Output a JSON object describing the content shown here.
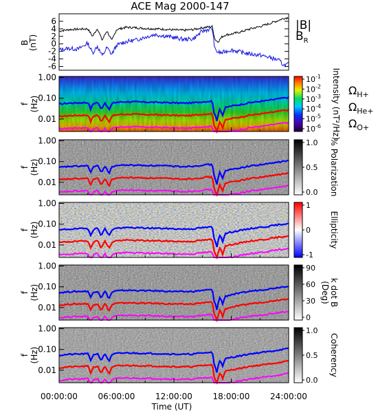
{
  "title": "ACE Mag 2000-147",
  "colors": {
    "bmag": "#000000",
    "br": "#1010e0",
    "h": "#0000ff",
    "he": "#ff0000",
    "o": "#ff00ff"
  },
  "chart_data": [
    {
      "type": "line",
      "panel": "B",
      "ylabel_top": "B",
      "ylabel_bottom": "(nT)",
      "ylim": [
        -7,
        8
      ],
      "ytick_labels": [
        "6",
        "4",
        "2",
        "0",
        "-2",
        "-4",
        "-6"
      ],
      "legend": [
        {
          "label": "|B|"
        },
        {
          "label": "B",
          "sub": "R"
        }
      ],
      "x": [
        0,
        1,
        2,
        3,
        3.5,
        4,
        4.5,
        5,
        5.5,
        6,
        7,
        8,
        9,
        10,
        11,
        12,
        13,
        14,
        15,
        16,
        16.3,
        16.6,
        17,
        17.4,
        18,
        19,
        20,
        21,
        22,
        23,
        23.5,
        24
      ],
      "series": [
        {
          "name": "|B|",
          "values": [
            3.4,
            3.8,
            3.9,
            4.0,
            2.0,
            4.1,
            1.0,
            3.5,
            0.8,
            3.8,
            4.4,
            4.3,
            4.1,
            4.0,
            3.9,
            3.7,
            3.6,
            3.8,
            4.3,
            4.6,
            1.2,
            0.5,
            1.8,
            2.4,
            2.6,
            3.2,
            4.0,
            4.6,
            5.4,
            6.3,
            6.8,
            7.0
          ]
        },
        {
          "name": "B_R",
          "values": [
            -1.6,
            -1.2,
            -1.4,
            0.2,
            -2.4,
            -0.6,
            -3.2,
            -1.0,
            -2.8,
            -0.4,
            0.6,
            1.0,
            1.8,
            2.5,
            2.1,
            1.7,
            1.2,
            1.3,
            3.4,
            4.1,
            -1.6,
            -2.2,
            -2.4,
            -2.0,
            -1.6,
            -2.2,
            -2.7,
            -3.0,
            -3.6,
            -4.4,
            -5.7,
            -5.4
          ]
        }
      ]
    },
    {
      "type": "heatmap",
      "panel": "intensity",
      "ylabel_top": "f",
      "ylabel_bottom": "(Hz)",
      "ytick_labels": [
        "1.00",
        "0.10",
        "0.01"
      ],
      "colorbar_label": "Intensity (nT²/Hz)",
      "colorbar_ticks": [
        {
          "base": "10",
          "exp": "-1"
        },
        {
          "base": "10",
          "exp": "-2"
        },
        {
          "base": "10",
          "exp": "-3"
        },
        {
          "base": "10",
          "exp": "-4"
        },
        {
          "base": "10",
          "exp": "-5"
        },
        {
          "base": "10",
          "exp": "-6"
        }
      ],
      "gyro_labels": [
        {
          "sym": "Ω",
          "sub": "H+"
        },
        {
          "sym": "Ω",
          "sub": "He+"
        },
        {
          "sym": "Ω",
          "sub": "O+"
        }
      ]
    },
    {
      "type": "heatmap",
      "panel": "polarization",
      "ylabel_top": "f",
      "ylabel_bottom": "(Hz)",
      "ytick_labels": [
        "1.00",
        "0.10",
        "0.01"
      ],
      "colorbar_label": "% Polarization",
      "colorbar_ticks": [
        "1.0",
        "0.5",
        "0.0"
      ]
    },
    {
      "type": "heatmap",
      "panel": "ellipticity",
      "ylabel_top": "f",
      "ylabel_bottom": "(Hz)",
      "ytick_labels": [
        "1.00",
        "0.10",
        "0.01"
      ],
      "colorbar_label": "Ellipticity",
      "colorbar_ticks": [
        "1",
        "0",
        "-1"
      ]
    },
    {
      "type": "heatmap",
      "panel": "kdotb",
      "ylabel_top": "f",
      "ylabel_bottom": "(Hz)",
      "ytick_labels": [
        "1.00",
        "0.10",
        "0.01"
      ],
      "colorbar_label": "k dot B",
      "colorbar_label_2": "(Deg)",
      "colorbar_ticks": [
        "90",
        "60",
        "30",
        "0"
      ]
    },
    {
      "type": "heatmap",
      "panel": "coherency",
      "ylabel_top": "f",
      "ylabel_bottom": "(Hz)",
      "ytick_labels": [
        "1.00",
        "0.10",
        "0.01"
      ],
      "colorbar_label": "Coherency",
      "colorbar_ticks": [
        "1.0",
        "0.5",
        "0.0"
      ],
      "xtick_labels": [
        "00:00:00",
        "06:00:00",
        "12:00:00",
        "18:00:00",
        "24:00:00"
      ],
      "xlabel": "Time (UT)"
    }
  ],
  "gyrofrequency_traces": {
    "x": [
      0,
      1,
      2,
      3,
      3.3,
      3.6,
      4,
      4.4,
      4.8,
      5.2,
      5.6,
      6,
      7,
      8,
      9,
      10,
      11,
      12,
      13,
      14,
      15,
      16,
      16.2,
      16.5,
      16.8,
      17.1,
      17.4,
      17.8,
      18,
      19,
      20,
      21,
      22,
      23,
      24
    ],
    "f_H": [
      0.052,
      0.058,
      0.06,
      0.062,
      0.03,
      0.055,
      0.064,
      0.028,
      0.06,
      0.025,
      0.058,
      0.064,
      0.068,
      0.067,
      0.065,
      0.064,
      0.062,
      0.06,
      0.058,
      0.06,
      0.068,
      0.073,
      0.02,
      0.008,
      0.03,
      0.015,
      0.035,
      0.04,
      0.042,
      0.05,
      0.062,
      0.07,
      0.08,
      0.095,
      0.11
    ]
  }
}
